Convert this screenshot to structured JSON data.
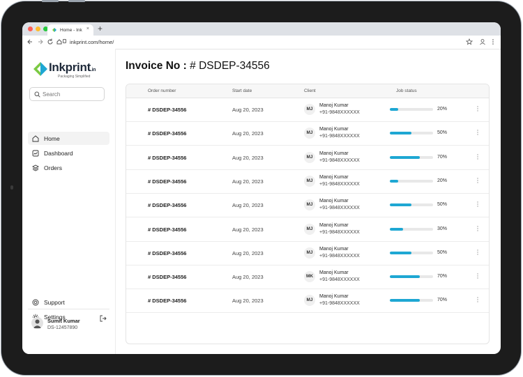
{
  "browser": {
    "tab_title": "Home - Ink",
    "tab_close": "×",
    "new_tab": "+",
    "url": "inkprint.com/home/",
    "dot_colors": [
      "#ff5f57",
      "#febc2e",
      "#28c840"
    ]
  },
  "brand": {
    "name": "Inkprint",
    "suffix": ".in",
    "tagline": "Packaging Simplified",
    "accent": "#1ea7d3",
    "green": "#7ac943"
  },
  "search": {
    "placeholder": "Search"
  },
  "nav": {
    "home": "Home",
    "dashboard": "Dashboard",
    "orders": "Orders",
    "support": "Support",
    "settings": "Settings"
  },
  "profile": {
    "name": "Sumit Kumar",
    "id": "DS-12457890"
  },
  "page": {
    "title_prefix": "Invoice No :",
    "title_value": "# DSDEP-34556"
  },
  "table": {
    "headers": {
      "order": "Order number",
      "date": "Start date",
      "client": "Client",
      "status": "Job status"
    },
    "rows": [
      {
        "order": "# DSDEP-34556",
        "date": "Aug 20, 2023",
        "initials": "MJ",
        "name": "Manoj Kumar",
        "phone": "+91-9848XXXXXX",
        "progress": 20,
        "pct": "20%"
      },
      {
        "order": "# DSDEP-34556",
        "date": "Aug 20, 2023",
        "initials": "MJ",
        "name": "Manoj Kumar",
        "phone": "+91-9848XXXXXX",
        "progress": 50,
        "pct": "50%"
      },
      {
        "order": "# DSDEP-34556",
        "date": "Aug 20, 2023",
        "initials": "MJ",
        "name": "Manoj Kumar",
        "phone": "+91-9848XXXXXX",
        "progress": 70,
        "pct": "70%"
      },
      {
        "order": "# DSDEP-34556",
        "date": "Aug 20, 2023",
        "initials": "MJ",
        "name": "Manoj Kumar",
        "phone": "+91-9848XXXXXX",
        "progress": 20,
        "pct": "20%"
      },
      {
        "order": "# DSDEP-34556",
        "date": "Aug 20, 2023",
        "initials": "MJ",
        "name": "Manoj Kumar",
        "phone": "+91-9848XXXXXX",
        "progress": 50,
        "pct": "50%"
      },
      {
        "order": "# DSDEP-34556",
        "date": "Aug 20, 2023",
        "initials": "MJ",
        "name": "Manoj Kumar",
        "phone": "+91-9848XXXXXX",
        "progress": 30,
        "pct": "30%"
      },
      {
        "order": "# DSDEP-34556",
        "date": "Aug 20, 2023",
        "initials": "MJ",
        "name": "Manoj Kumar",
        "phone": "+91-9848XXXXXX",
        "progress": 50,
        "pct": "50%"
      },
      {
        "order": "# DSDEP-34556",
        "date": "Aug 20, 2023",
        "initials": "MK",
        "name": "Manoj Kumar",
        "phone": "+91-9848XXXXXX",
        "progress": 70,
        "pct": "70%"
      },
      {
        "order": "# DSDEP-34556",
        "date": "Aug 20, 2023",
        "initials": "MJ",
        "name": "Manoj Kumar",
        "phone": "+91-9848XXXXXX",
        "progress": 70,
        "pct": "70%"
      }
    ]
  }
}
